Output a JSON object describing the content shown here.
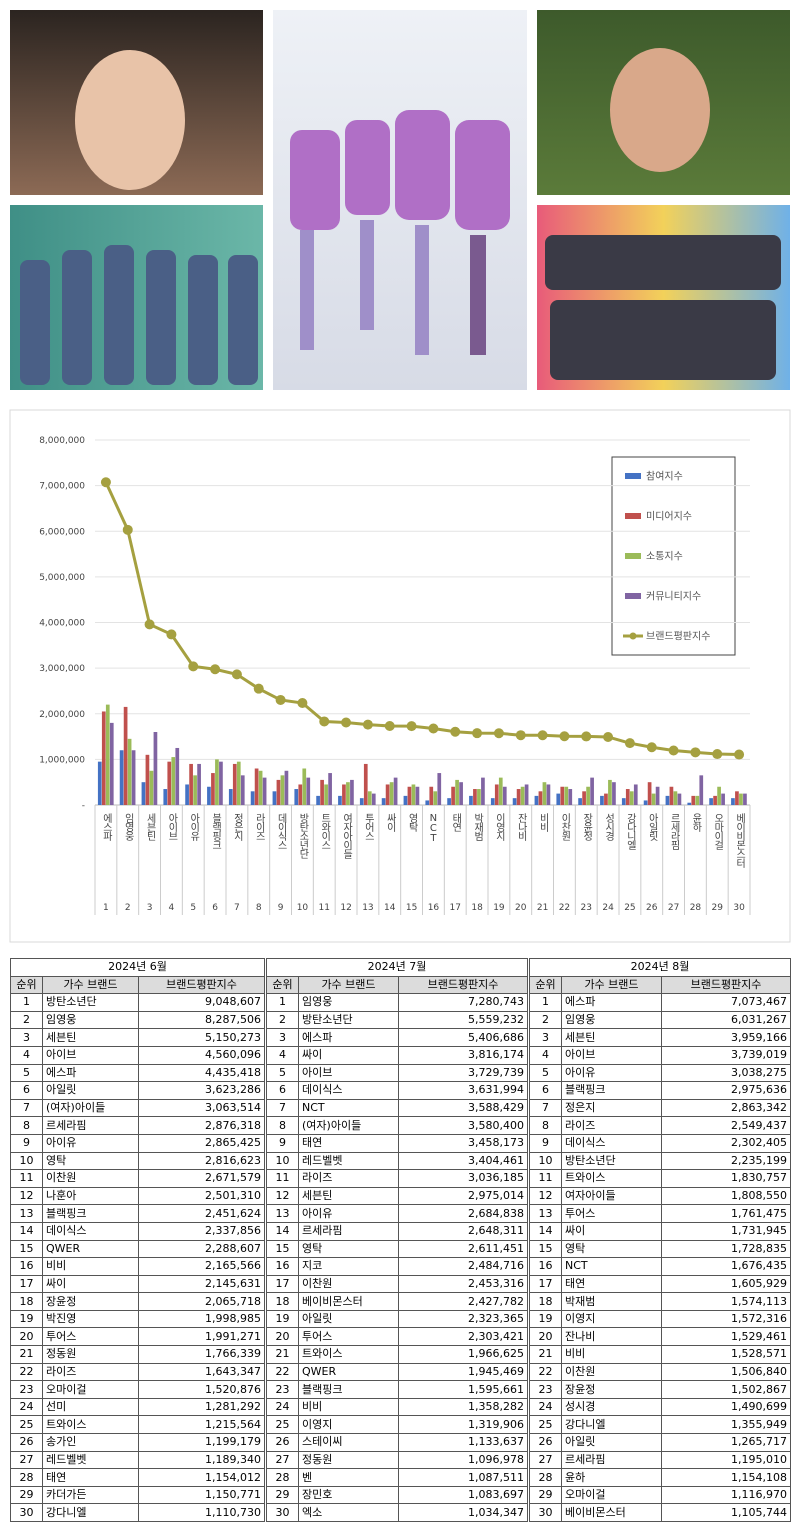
{
  "chart_data": {
    "type": "combo",
    "categories": [
      "에스파",
      "임영웅",
      "세븐틴",
      "아이브",
      "아이유",
      "블랙핑크",
      "정은지",
      "라이즈",
      "데이식스",
      "방탄소년단",
      "트와이스",
      "여자아이들",
      "투어스",
      "싸이",
      "영탁",
      "NCT",
      "태연",
      "박재범",
      "이영지",
      "잔나비",
      "비비",
      "이찬원",
      "장윤정",
      "성시경",
      "강다니엘",
      "아일릿",
      "르세라핌",
      "윤하",
      "오마이걸",
      "베이비몬스터"
    ],
    "ranks": [
      1,
      2,
      3,
      4,
      5,
      6,
      7,
      8,
      9,
      10,
      11,
      12,
      13,
      14,
      15,
      16,
      17,
      18,
      19,
      20,
      21,
      22,
      23,
      24,
      25,
      26,
      27,
      28,
      29,
      30
    ],
    "ylim": [
      0,
      8000000
    ],
    "yticks": [
      {
        "value": 0,
        "label": "-"
      },
      {
        "value": 1000000,
        "label": "1,000,000"
      },
      {
        "value": 2000000,
        "label": "2,000,000"
      },
      {
        "value": 3000000,
        "label": "3,000,000"
      },
      {
        "value": 4000000,
        "label": "4,000,000"
      },
      {
        "value": 5000000,
        "label": "5,000,000"
      },
      {
        "value": 6000000,
        "label": "6,000,000"
      },
      {
        "value": 7000000,
        "label": "7,000,000"
      },
      {
        "value": 8000000,
        "label": "8,000,000"
      }
    ],
    "grid": true,
    "legend": "upper-right",
    "series": [
      {
        "name": "참여지수",
        "type": "bar",
        "color": "#4472c4",
        "values": [
          950000,
          1200000,
          500000,
          350000,
          450000,
          400000,
          350000,
          300000,
          300000,
          350000,
          200000,
          200000,
          150000,
          150000,
          200000,
          100000,
          150000,
          200000,
          150000,
          150000,
          200000,
          250000,
          150000,
          200000,
          150000,
          100000,
          200000,
          50000,
          150000,
          150000
        ]
      },
      {
        "name": "미디어지수",
        "type": "bar",
        "color": "#c0504d",
        "values": [
          2050000,
          2150000,
          1100000,
          950000,
          900000,
          700000,
          900000,
          800000,
          550000,
          450000,
          550000,
          450000,
          900000,
          450000,
          400000,
          400000,
          400000,
          350000,
          450000,
          350000,
          300000,
          400000,
          300000,
          250000,
          350000,
          500000,
          400000,
          200000,
          200000,
          300000
        ]
      },
      {
        "name": "소통지수",
        "type": "bar",
        "color": "#9bbb59",
        "values": [
          2200000,
          1450000,
          750000,
          1050000,
          650000,
          1000000,
          950000,
          750000,
          650000,
          800000,
          450000,
          500000,
          300000,
          500000,
          450000,
          300000,
          550000,
          350000,
          600000,
          400000,
          500000,
          400000,
          400000,
          550000,
          300000,
          250000,
          300000,
          200000,
          400000,
          250000
        ]
      },
      {
        "name": "커뮤니티지수",
        "type": "bar",
        "color": "#8064a2",
        "values": [
          1800000,
          1200000,
          1600000,
          1250000,
          900000,
          950000,
          650000,
          600000,
          750000,
          600000,
          700000,
          550000,
          250000,
          600000,
          400000,
          700000,
          500000,
          600000,
          400000,
          450000,
          450000,
          350000,
          600000,
          500000,
          450000,
          400000,
          250000,
          650000,
          250000,
          250000
        ]
      },
      {
        "name": "브랜드평판지수",
        "type": "line",
        "color": "#a5a040",
        "values": [
          7073467,
          6031267,
          3959166,
          3739019,
          3038275,
          2975636,
          2863342,
          2549437,
          2302405,
          2235199,
          1830757,
          1808550,
          1761475,
          1731945,
          1728835,
          1676435,
          1605929,
          1574113,
          1572316,
          1529461,
          1528571,
          1506840,
          1502867,
          1490699,
          1355949,
          1265717,
          1195010,
          1154108,
          1116970,
          1105744
        ]
      }
    ]
  },
  "tables": [
    {
      "title": "2024년 6월",
      "columns": [
        "순위",
        "가수 브랜드",
        "브랜드평판지수"
      ],
      "rows": [
        [
          1,
          "방탄소년단",
          "9,048,607"
        ],
        [
          2,
          "임영웅",
          "8,287,506"
        ],
        [
          3,
          "세븐틴",
          "5,150,273"
        ],
        [
          4,
          "아이브",
          "4,560,096"
        ],
        [
          5,
          "에스파",
          "4,435,418"
        ],
        [
          6,
          "아일릿",
          "3,623,286"
        ],
        [
          7,
          "(여자)아이들",
          "3,063,514"
        ],
        [
          8,
          "르세라핌",
          "2,876,318"
        ],
        [
          9,
          "아이유",
          "2,865,425"
        ],
        [
          10,
          "영탁",
          "2,816,623"
        ],
        [
          11,
          "이찬원",
          "2,671,579"
        ],
        [
          12,
          "나훈아",
          "2,501,310"
        ],
        [
          13,
          "블랙핑크",
          "2,451,624"
        ],
        [
          14,
          "데이식스",
          "2,337,856"
        ],
        [
          15,
          "QWER",
          "2,288,607"
        ],
        [
          16,
          "비비",
          "2,165,566"
        ],
        [
          17,
          "싸이",
          "2,145,631"
        ],
        [
          18,
          "장윤정",
          "2,065,718"
        ],
        [
          19,
          "박진영",
          "1,998,985"
        ],
        [
          20,
          "투어스",
          "1,991,271"
        ],
        [
          21,
          "정동원",
          "1,766,339"
        ],
        [
          22,
          "라이즈",
          "1,643,347"
        ],
        [
          23,
          "오마이걸",
          "1,520,876"
        ],
        [
          24,
          "선미",
          "1,281,292"
        ],
        [
          25,
          "트와이스",
          "1,215,564"
        ],
        [
          26,
          "송가인",
          "1,199,179"
        ],
        [
          27,
          "레드벨벳",
          "1,189,340"
        ],
        [
          28,
          "태연",
          "1,154,012"
        ],
        [
          29,
          "카더가든",
          "1,150,771"
        ],
        [
          30,
          "강다니엘",
          "1,110,730"
        ]
      ]
    },
    {
      "title": "2024년 7월",
      "columns": [
        "순위",
        "가수 브랜드",
        "브랜드평판지수"
      ],
      "rows": [
        [
          1,
          "임영웅",
          "7,280,743"
        ],
        [
          2,
          "방탄소년단",
          "5,559,232"
        ],
        [
          3,
          "에스파",
          "5,406,686"
        ],
        [
          4,
          "싸이",
          "3,816,174"
        ],
        [
          5,
          "아이브",
          "3,729,739"
        ],
        [
          6,
          "데이식스",
          "3,631,994"
        ],
        [
          7,
          "NCT",
          "3,588,429"
        ],
        [
          8,
          "(여자)아이들",
          "3,580,400"
        ],
        [
          9,
          "태연",
          "3,458,173"
        ],
        [
          10,
          "레드벨벳",
          "3,404,461"
        ],
        [
          11,
          "라이즈",
          "3,036,185"
        ],
        [
          12,
          "세븐틴",
          "2,975,014"
        ],
        [
          13,
          "아이유",
          "2,684,838"
        ],
        [
          14,
          "르세라핌",
          "2,648,311"
        ],
        [
          15,
          "영탁",
          "2,611,451"
        ],
        [
          16,
          "지코",
          "2,484,716"
        ],
        [
          17,
          "이찬원",
          "2,453,316"
        ],
        [
          18,
          "베이비몬스터",
          "2,427,782"
        ],
        [
          19,
          "아일릿",
          "2,323,365"
        ],
        [
          20,
          "투어스",
          "2,303,421"
        ],
        [
          21,
          "트와이스",
          "1,966,625"
        ],
        [
          22,
          "QWER",
          "1,945,469"
        ],
        [
          23,
          "블랙핑크",
          "1,595,661"
        ],
        [
          24,
          "비비",
          "1,358,282"
        ],
        [
          25,
          "이영지",
          "1,319,906"
        ],
        [
          26,
          "스테이씨",
          "1,133,637"
        ],
        [
          27,
          "정동원",
          "1,096,978"
        ],
        [
          28,
          "벤",
          "1,087,511"
        ],
        [
          29,
          "장민호",
          "1,083,697"
        ],
        [
          30,
          "엑소",
          "1,034,347"
        ]
      ]
    },
    {
      "title": "2024년 8월",
      "columns": [
        "순위",
        "가수 브랜드",
        "브랜드평판지수"
      ],
      "rows": [
        [
          1,
          "에스파",
          "7,073,467"
        ],
        [
          2,
          "임영웅",
          "6,031,267"
        ],
        [
          3,
          "세븐틴",
          "3,959,166"
        ],
        [
          4,
          "아이브",
          "3,739,019"
        ],
        [
          5,
          "아이유",
          "3,038,275"
        ],
        [
          6,
          "블랙핑크",
          "2,975,636"
        ],
        [
          7,
          "정은지",
          "2,863,342"
        ],
        [
          8,
          "라이즈",
          "2,549,437"
        ],
        [
          9,
          "데이식스",
          "2,302,405"
        ],
        [
          10,
          "방탄소년단",
          "2,235,199"
        ],
        [
          11,
          "트와이스",
          "1,830,757"
        ],
        [
          12,
          "여자아이들",
          "1,808,550"
        ],
        [
          13,
          "투어스",
          "1,761,475"
        ],
        [
          14,
          "싸이",
          "1,731,945"
        ],
        [
          15,
          "영탁",
          "1,728,835"
        ],
        [
          16,
          "NCT",
          "1,676,435"
        ],
        [
          17,
          "태연",
          "1,605,929"
        ],
        [
          18,
          "박재범",
          "1,574,113"
        ],
        [
          19,
          "이영지",
          "1,572,316"
        ],
        [
          20,
          "잔나비",
          "1,529,461"
        ],
        [
          21,
          "비비",
          "1,528,571"
        ],
        [
          22,
          "이찬원",
          "1,506,840"
        ],
        [
          23,
          "장윤정",
          "1,502,867"
        ],
        [
          24,
          "성시경",
          "1,490,699"
        ],
        [
          25,
          "강다니엘",
          "1,355,949"
        ],
        [
          26,
          "아일릿",
          "1,265,717"
        ],
        [
          27,
          "르세라핌",
          "1,195,010"
        ],
        [
          28,
          "윤하",
          "1,154,108"
        ],
        [
          29,
          "오마이걸",
          "1,116,970"
        ],
        [
          30,
          "베이비몬스터",
          "1,105,744"
        ]
      ]
    }
  ]
}
